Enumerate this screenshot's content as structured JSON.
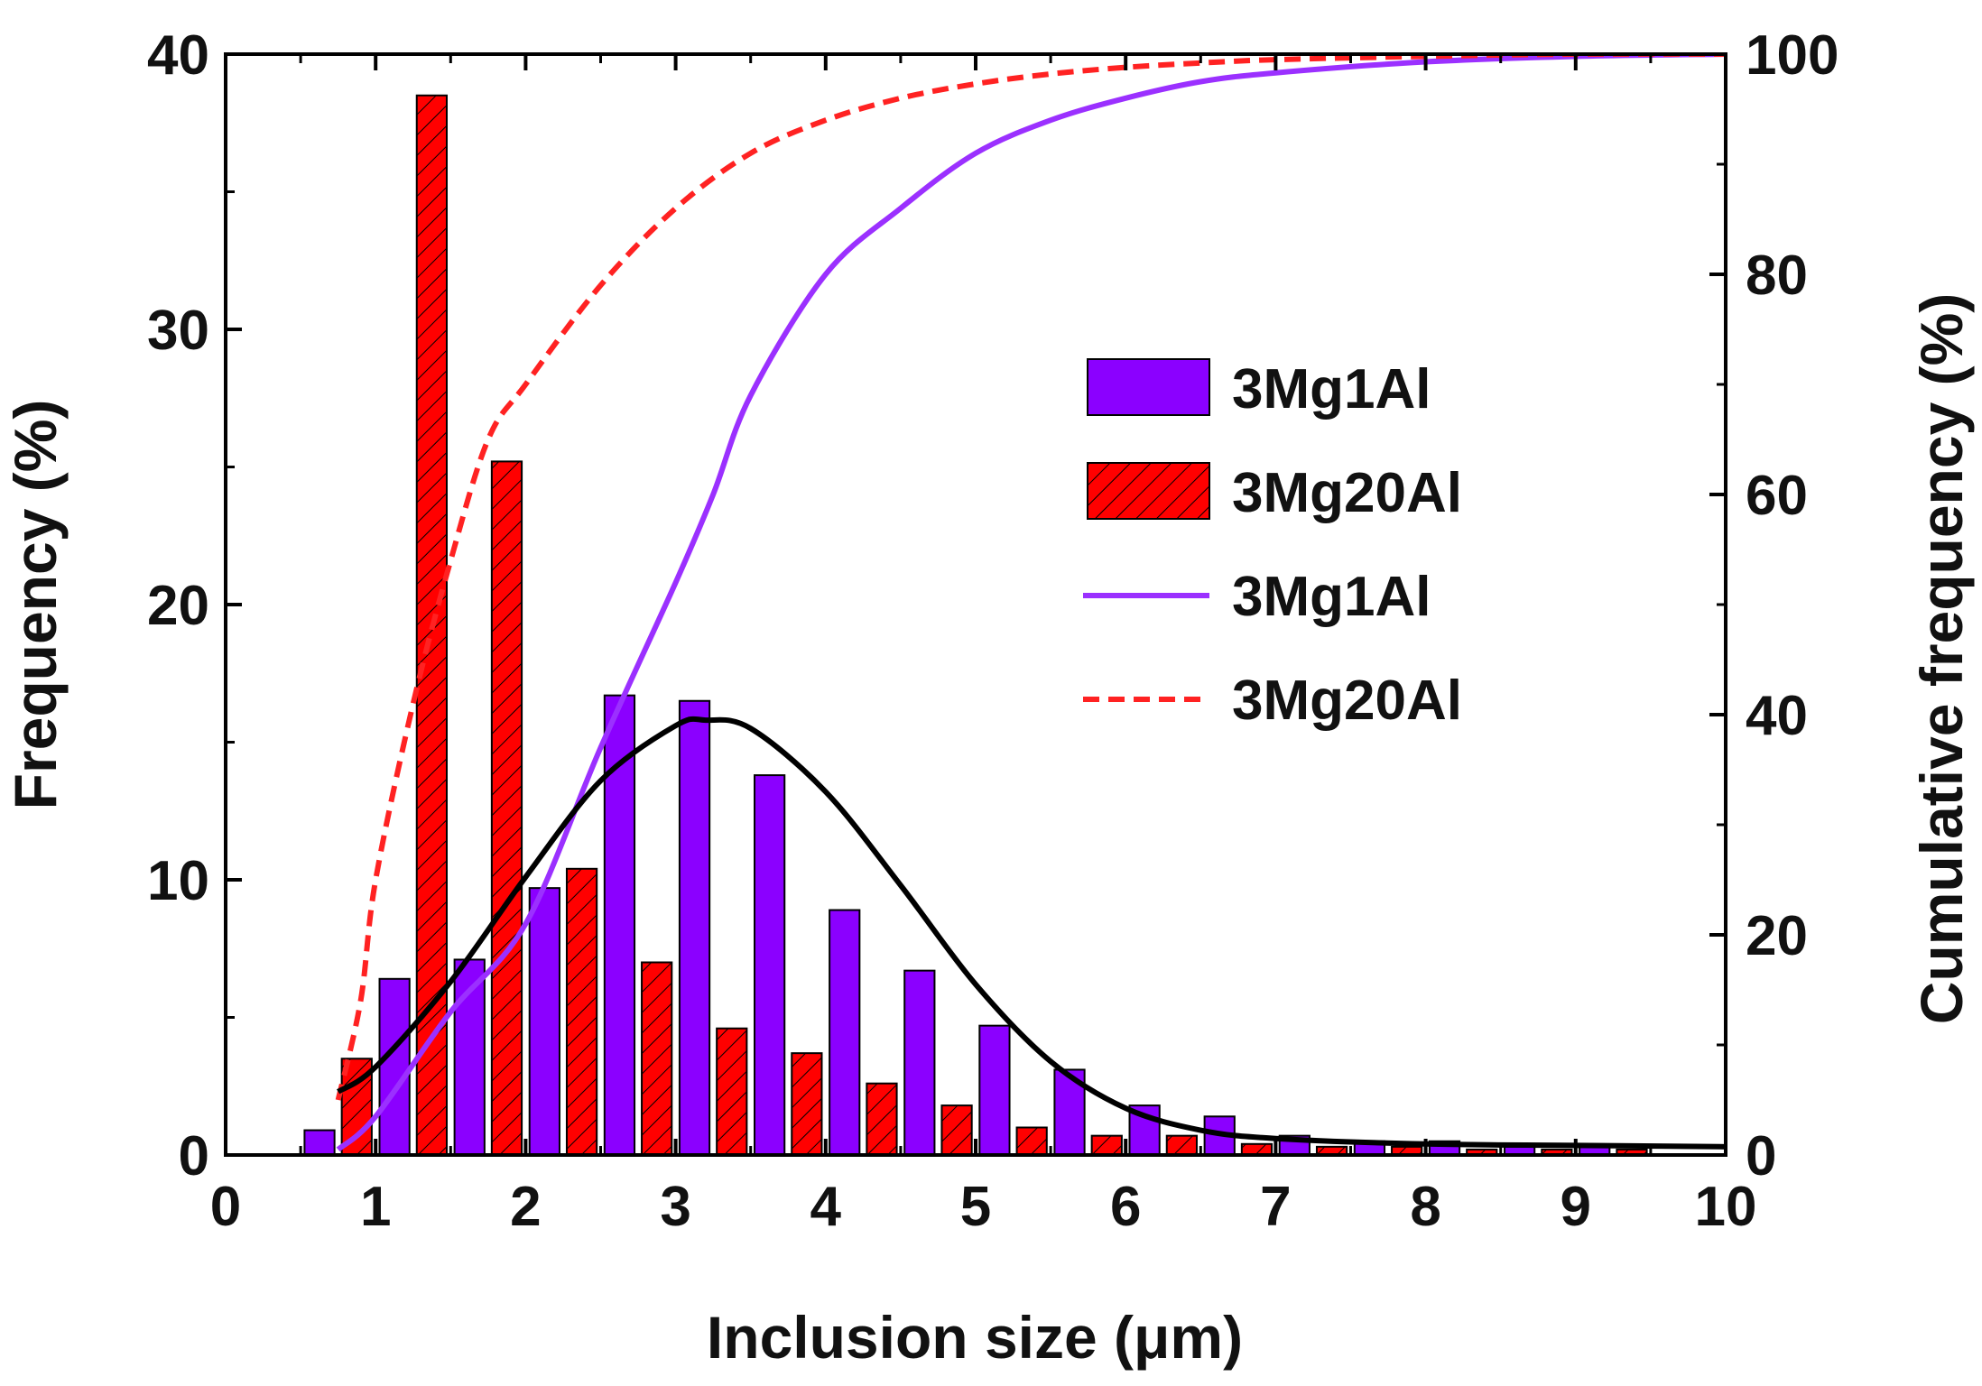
{
  "chart_data": {
    "type": "bar",
    "xlabel": "Inclusion size (μm)",
    "ylabel": "Frequency  (%)",
    "ylabel_right": "Cumulative frequency  (%)",
    "xlim": [
      0,
      10
    ],
    "ylim": [
      0,
      40
    ],
    "ylim_right": [
      0,
      100
    ],
    "x_ticks": [
      0,
      1,
      2,
      3,
      4,
      5,
      6,
      7,
      8,
      9,
      10
    ],
    "y_ticks": [
      0,
      10,
      20,
      30,
      40
    ],
    "y_ticks_right": [
      0,
      20,
      40,
      60,
      80,
      100
    ],
    "grid": false,
    "legend_position": "center-right",
    "bar_centers": [
      0.75,
      1.25,
      1.75,
      2.25,
      2.75,
      3.25,
      3.75,
      4.25,
      4.75,
      5.25,
      5.75,
      6.25,
      6.75,
      7.25,
      7.75,
      8.25,
      8.75,
      9.25
    ],
    "series": [
      {
        "name": "3Mg1Al",
        "kind": "bar",
        "color": "#8b00ff",
        "values": [
          0.9,
          6.4,
          7.1,
          9.7,
          16.7,
          16.5,
          13.8,
          8.9,
          6.7,
          4.7,
          3.1,
          1.8,
          1.4,
          0.7,
          0.5,
          0.5,
          0.3,
          0.3
        ]
      },
      {
        "name": "3Mg20Al",
        "kind": "bar",
        "color": "#ff0000",
        "hatch": true,
        "values": [
          3.5,
          38.5,
          25.2,
          10.4,
          7.0,
          4.6,
          3.7,
          2.6,
          1.8,
          1.0,
          0.7,
          0.7,
          0.4,
          0.3,
          0.3,
          0.2,
          0.2,
          0.2
        ]
      },
      {
        "name": "3Mg1Al",
        "kind": "cumulative-line",
        "axis": "right",
        "color": "#9b30ff",
        "x": [
          0.75,
          1.0,
          1.5,
          2.0,
          2.5,
          3.0,
          3.25,
          3.5,
          4.0,
          4.5,
          5.0,
          5.5,
          6.0,
          6.5,
          7.0,
          8.0,
          9.0,
          10.0
        ],
        "values": [
          0.5,
          3.5,
          13,
          21,
          37,
          52,
          60,
          69,
          80,
          86,
          91,
          94,
          96,
          97.5,
          98.3,
          99.3,
          99.8,
          100
        ]
      },
      {
        "name": "3Mg20Al",
        "kind": "cumulative-line",
        "axis": "right",
        "color": "#ff2222",
        "dashed": true,
        "x": [
          0.75,
          0.9,
          1.0,
          1.25,
          1.5,
          1.75,
          2.0,
          2.5,
          3.0,
          3.5,
          4.0,
          4.5,
          5.0,
          5.5,
          6.0,
          6.5,
          7.0,
          8.0,
          9.0,
          10.0
        ],
        "values": [
          5,
          14,
          25,
          41,
          54,
          65,
          70,
          79,
          86,
          91,
          94,
          96,
          97.3,
          98.2,
          98.8,
          99.2,
          99.5,
          99.8,
          100,
          100
        ]
      },
      {
        "name": "fit",
        "kind": "gaussian-fit",
        "color": "#000000",
        "x": [
          0.75,
          1.0,
          1.5,
          2.0,
          2.5,
          3.0,
          3.2,
          3.5,
          4.0,
          4.5,
          5.0,
          5.5,
          6.0,
          6.5,
          7.0,
          8.0,
          9.0,
          10.0
        ],
        "values": [
          2.3,
          3.2,
          6.3,
          10.1,
          13.6,
          15.6,
          15.8,
          15.5,
          13.2,
          9.8,
          6.2,
          3.4,
          1.7,
          0.9,
          0.6,
          0.4,
          0.35,
          0.3
        ]
      }
    ],
    "legend": [
      {
        "label": "3Mg1Al",
        "kind": "bar",
        "color": "#8b00ff"
      },
      {
        "label": "3Mg20Al",
        "kind": "bar-hatched",
        "color": "#ff0000"
      },
      {
        "label": "3Mg1Al",
        "kind": "line",
        "color": "#9b30ff"
      },
      {
        "label": "3Mg20Al",
        "kind": "dashed-line",
        "color": "#ff2222"
      }
    ]
  }
}
